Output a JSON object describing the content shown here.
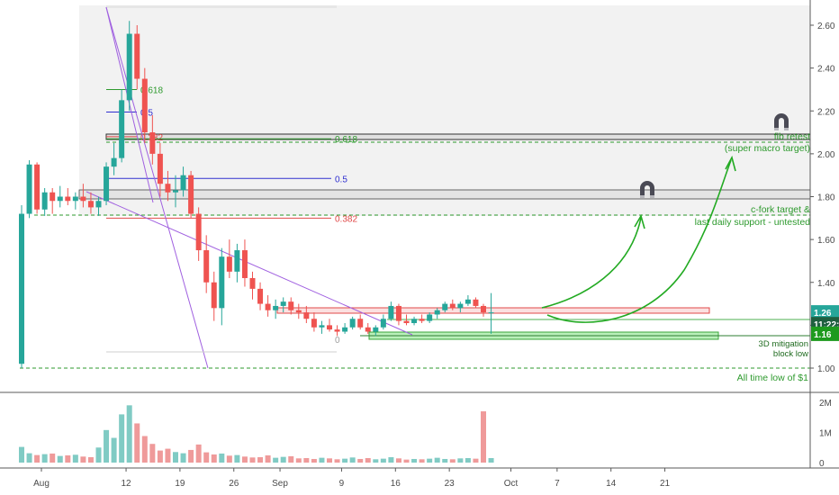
{
  "chart_data": {
    "type": "candlestick",
    "y_axis": {
      "range": [
        0.97,
        2.7
      ],
      "ticks": [
        "1.00",
        "1.20",
        "1.40",
        "1.60",
        "1.80",
        "2.00",
        "2.20",
        "2.40",
        "2.60"
      ],
      "price_badges": [
        {
          "label": "1.26",
          "value": 1.26,
          "color": "#26a69a"
        },
        {
          "label": "11:22:4",
          "value": 1.205,
          "color": "#1f5f3f"
        },
        {
          "label": "1.16",
          "value": 1.16,
          "color": "#1e9a1e"
        }
      ]
    },
    "x_axis": {
      "ticks": [
        {
          "label": "Aug",
          "day": 0
        },
        {
          "label": "12",
          "day": 11
        },
        {
          "label": "19",
          "day": 18
        },
        {
          "label": "26",
          "day": 25
        },
        {
          "label": "Sep",
          "day": 31
        },
        {
          "label": "9",
          "day": 39
        },
        {
          "label": "16",
          "day": 46
        },
        {
          "label": "23",
          "day": 53
        },
        {
          "label": "Oct",
          "day": 61
        },
        {
          "label": "7",
          "day": 67
        },
        {
          "label": "14",
          "day": 74
        },
        {
          "label": "21",
          "day": 81
        }
      ]
    },
    "volume_axis": {
      "ticks": [
        "2M",
        "1M",
        "0"
      ],
      "range": [
        0,
        2000000
      ]
    },
    "candles": [
      [
        1.02,
        1.76,
        1.0,
        1.72
      ],
      [
        1.72,
        1.97,
        1.7,
        1.95
      ],
      [
        1.95,
        1.96,
        1.72,
        1.74
      ],
      [
        1.74,
        1.84,
        1.71,
        1.82
      ],
      [
        1.82,
        1.84,
        1.72,
        1.78
      ],
      [
        1.78,
        1.85,
        1.75,
        1.8
      ],
      [
        1.8,
        1.84,
        1.76,
        1.78
      ],
      [
        1.78,
        1.82,
        1.74,
        1.8
      ],
      [
        1.8,
        1.86,
        1.75,
        1.78
      ],
      [
        1.78,
        1.82,
        1.72,
        1.75
      ],
      [
        1.75,
        1.8,
        1.71,
        1.78
      ],
      [
        1.78,
        1.96,
        1.76,
        1.94
      ],
      [
        1.94,
        2.05,
        1.9,
        1.98
      ],
      [
        1.98,
        2.3,
        1.96,
        2.25
      ],
      [
        2.25,
        2.62,
        2.2,
        2.56
      ],
      [
        2.56,
        2.6,
        2.3,
        2.35
      ],
      [
        2.35,
        2.4,
        2.05,
        2.1
      ],
      [
        2.1,
        2.18,
        1.95,
        2.0
      ],
      [
        2.0,
        2.05,
        1.8,
        1.86
      ],
      [
        1.86,
        1.92,
        1.78,
        1.82
      ],
      [
        1.82,
        1.9,
        1.75,
        1.83
      ],
      [
        1.83,
        1.94,
        1.8,
        1.9
      ],
      [
        1.9,
        1.92,
        1.7,
        1.72
      ],
      [
        1.72,
        1.75,
        1.5,
        1.55
      ],
      [
        1.55,
        1.62,
        1.35,
        1.4
      ],
      [
        1.4,
        1.45,
        1.22,
        1.28
      ],
      [
        1.28,
        1.56,
        1.2,
        1.52
      ],
      [
        1.52,
        1.6,
        1.42,
        1.45
      ],
      [
        1.45,
        1.58,
        1.4,
        1.55
      ],
      [
        1.55,
        1.6,
        1.38,
        1.42
      ],
      [
        1.42,
        1.45,
        1.32,
        1.37
      ],
      [
        1.37,
        1.4,
        1.27,
        1.3
      ],
      [
        1.3,
        1.34,
        1.24,
        1.27
      ],
      [
        1.27,
        1.32,
        1.23,
        1.29
      ],
      [
        1.29,
        1.33,
        1.26,
        1.31
      ],
      [
        1.31,
        1.33,
        1.25,
        1.27
      ],
      [
        1.27,
        1.3,
        1.23,
        1.26
      ],
      [
        1.26,
        1.29,
        1.21,
        1.23
      ],
      [
        1.23,
        1.26,
        1.17,
        1.19
      ],
      [
        1.19,
        1.22,
        1.16,
        1.2
      ],
      [
        1.2,
        1.23,
        1.17,
        1.18
      ],
      [
        1.18,
        1.2,
        1.15,
        1.17
      ],
      [
        1.17,
        1.21,
        1.16,
        1.19
      ],
      [
        1.19,
        1.24,
        1.18,
        1.23
      ],
      [
        1.23,
        1.25,
        1.18,
        1.19
      ],
      [
        1.19,
        1.21,
        1.16,
        1.17
      ],
      [
        1.17,
        1.2,
        1.15,
        1.19
      ],
      [
        1.19,
        1.25,
        1.18,
        1.23
      ],
      [
        1.23,
        1.31,
        1.22,
        1.29
      ],
      [
        1.29,
        1.3,
        1.2,
        1.22
      ],
      [
        1.22,
        1.25,
        1.2,
        1.21
      ],
      [
        1.21,
        1.24,
        1.2,
        1.23
      ],
      [
        1.23,
        1.25,
        1.21,
        1.22
      ],
      [
        1.22,
        1.26,
        1.21,
        1.25
      ],
      [
        1.25,
        1.28,
        1.23,
        1.27
      ],
      [
        1.27,
        1.31,
        1.26,
        1.3
      ],
      [
        1.3,
        1.32,
        1.27,
        1.28
      ],
      [
        1.28,
        1.31,
        1.26,
        1.3
      ],
      [
        1.3,
        1.34,
        1.29,
        1.32
      ],
      [
        1.32,
        1.33,
        1.28,
        1.29
      ],
      [
        1.29,
        1.3,
        1.24,
        1.26
      ],
      [
        1.26,
        1.35,
        1.16,
        1.26
      ]
    ],
    "volumes": [
      520000,
      310000,
      250000,
      280000,
      300000,
      220000,
      240000,
      260000,
      200000,
      180000,
      500000,
      1080000,
      820000,
      1600000,
      1900000,
      1300000,
      880000,
      620000,
      400000,
      460000,
      350000,
      310000,
      420000,
      600000,
      340000,
      270000,
      300000,
      230000,
      250000,
      200000,
      170000,
      180000,
      240000,
      160000,
      190000,
      210000,
      140000,
      150000,
      120000,
      160000,
      140000,
      110000,
      130000,
      170000,
      120000,
      150000,
      110000,
      130000,
      180000,
      140000,
      100000,
      120000,
      110000,
      130000,
      160000,
      120000,
      110000,
      140000,
      150000,
      130000,
      1700000,
      150000
    ],
    "fib_levels_left": [
      {
        "label": "0.618",
        "value": 2.3,
        "color": "#2e9a2e"
      },
      {
        "label": "0.5",
        "value": 2.195,
        "color": "#3030d0"
      },
      {
        "label": "0.382",
        "value": 2.08,
        "color": "#e04848"
      }
    ],
    "fib_levels_mid": [
      {
        "label": "0.618",
        "value": 2.07,
        "color": "#2e9a2e"
      },
      {
        "label": "0.5",
        "value": 1.885,
        "color": "#3030d0"
      },
      {
        "label": "0.382",
        "value": 1.7,
        "color": "#e04848"
      },
      {
        "label": "0",
        "value": 1.135,
        "color": "#9e9e9e"
      }
    ],
    "annotations": {
      "target_top_line1": "fib retest",
      "target_top_line2": "(super macro target)",
      "target_mid_line1": "c-fork target &",
      "target_mid_line2": "last daily support - untested",
      "mitigation_line1": "3D mitigation",
      "mitigation_line2": "block low",
      "atl": "All time low of $1"
    },
    "colors": {
      "up": "#26a69a",
      "down": "#ef5350",
      "target": "#2e9a2e"
    }
  }
}
